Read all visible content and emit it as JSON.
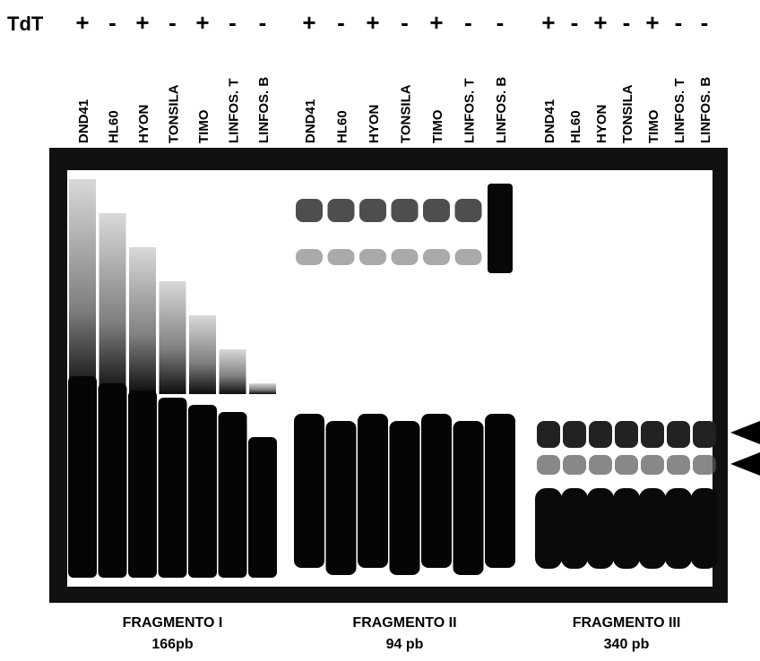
{
  "header": {
    "label": "TdT"
  },
  "groups": [
    {
      "lanes": [
        {
          "name": "DND41",
          "tdt": "+"
        },
        {
          "name": "HL60",
          "tdt": "-"
        },
        {
          "name": "HYON",
          "tdt": "+"
        },
        {
          "name": "TONSILA",
          "tdt": "-"
        },
        {
          "name": "TIMO",
          "tdt": "+"
        },
        {
          "name": "LINFOS. T",
          "tdt": "-"
        },
        {
          "name": "LINFOS. B",
          "tdt": "-"
        }
      ],
      "fragment": "FRAGMENTO I",
      "size": "166pb"
    },
    {
      "lanes": [
        {
          "name": "DND41",
          "tdt": "+"
        },
        {
          "name": "HL60",
          "tdt": "-"
        },
        {
          "name": "HYON",
          "tdt": "+"
        },
        {
          "name": "TONSILA",
          "tdt": "-"
        },
        {
          "name": "TIMO",
          "tdt": "+"
        },
        {
          "name": "LINFOS. T",
          "tdt": "-"
        },
        {
          "name": "LINFOS. B",
          "tdt": "-"
        }
      ],
      "fragment": "FRAGMENTO II",
      "size": "94 pb"
    },
    {
      "lanes": [
        {
          "name": "DND41",
          "tdt": "+"
        },
        {
          "name": "HL60",
          "tdt": "-"
        },
        {
          "name": "HYON",
          "tdt": "+"
        },
        {
          "name": "TONSILA",
          "tdt": "-"
        },
        {
          "name": "TIMO",
          "tdt": "+"
        },
        {
          "name": "LINFOS. T",
          "tdt": "-"
        },
        {
          "name": "LINFOS. B",
          "tdt": "-"
        }
      ],
      "fragment": "FRAGMENTO III",
      "size": "340 pb"
    }
  ]
}
